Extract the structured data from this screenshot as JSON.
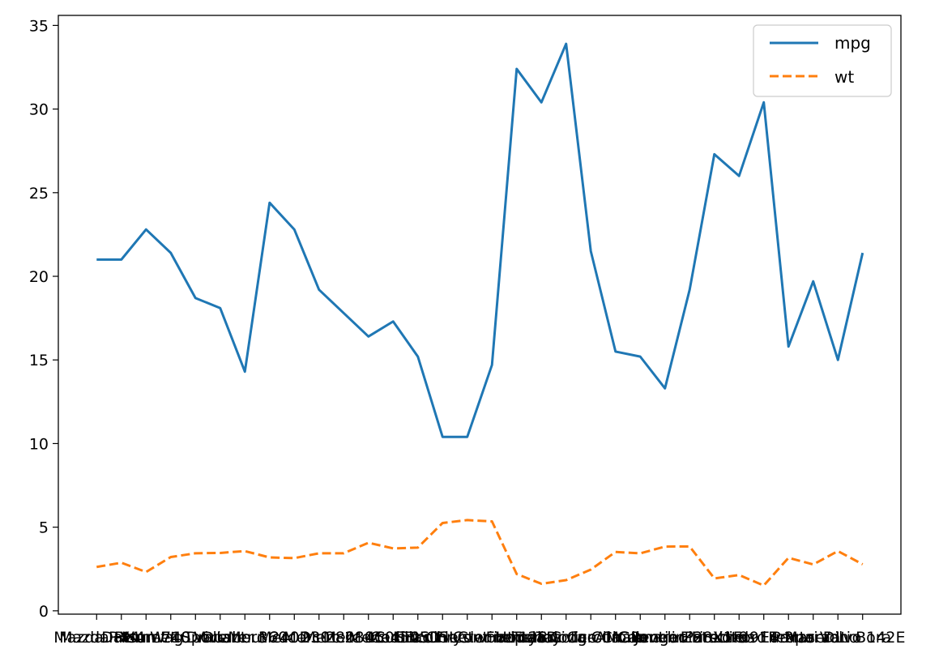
{
  "chart_data": {
    "type": "line",
    "categories": [
      "Mazda RX4",
      "Mazda RX4 Wag",
      "Datsun 710",
      "Hornet 4 Drive",
      "Hornet Sportabout",
      "Valiant",
      "Duster 360",
      "Merc 240D",
      "Merc 230",
      "Merc 280",
      "Merc 280C",
      "Merc 450SE",
      "Merc 450SL",
      "Merc 450SLC",
      "Cadillac Fleetwood",
      "Lincoln Continental",
      "Chrysler Imperial",
      "Fiat 128",
      "Honda Civic",
      "Toyota Corolla",
      "Toyota Corona",
      "Dodge Challenger",
      "AMC Javelin",
      "Camaro Z28",
      "Pontiac Firebird",
      "Fiat X1-9",
      "Porsche 914-2",
      "Lotus Europa",
      "Ford Pantera L",
      "Ferrari Dino",
      "Maserati Bora",
      "Volvo 142E"
    ],
    "series": [
      {
        "name": "mpg",
        "color": "#1f77b4",
        "style": "solid",
        "values": [
          21.0,
          21.0,
          22.8,
          21.4,
          18.7,
          18.1,
          14.3,
          24.4,
          22.8,
          19.2,
          17.8,
          16.4,
          17.3,
          15.2,
          10.4,
          10.4,
          14.7,
          32.4,
          30.4,
          33.9,
          21.5,
          15.5,
          15.2,
          13.3,
          19.2,
          27.3,
          26.0,
          30.4,
          15.8,
          19.7,
          15.0,
          21.4
        ]
      },
      {
        "name": "wt",
        "color": "#ff7f0e",
        "style": "dashed",
        "values": [
          2.62,
          2.875,
          2.32,
          3.215,
          3.44,
          3.46,
          3.57,
          3.19,
          3.15,
          3.44,
          3.44,
          4.07,
          3.73,
          3.78,
          5.25,
          5.424,
          5.345,
          2.2,
          1.615,
          1.835,
          2.465,
          3.52,
          3.435,
          3.84,
          3.845,
          1.935,
          2.14,
          1.513,
          3.17,
          2.77,
          3.57,
          2.78
        ]
      }
    ],
    "yticks": [
      0,
      5,
      10,
      15,
      20,
      25,
      30,
      35
    ],
    "ylim": [
      -0.2,
      35.6
    ],
    "xlim": [
      -1.55,
      32.55
    ],
    "grid": false,
    "legend": "top-right",
    "title": "",
    "xlabel": "",
    "ylabel": ""
  }
}
